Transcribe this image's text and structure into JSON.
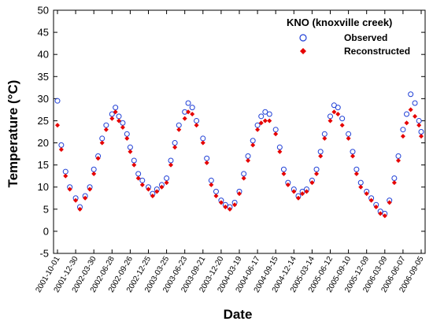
{
  "chart_data": {
    "type": "scatter",
    "title": "",
    "xlabel": "Date",
    "ylabel": "Temperature (°C)",
    "legend_title": "KNO (knoxville creek)",
    "legend_position": "top-right",
    "ylim": [
      -5,
      50
    ],
    "y_ticks": [
      -5,
      0,
      5,
      10,
      15,
      20,
      25,
      30,
      35,
      40,
      45,
      50
    ],
    "y_tick_labels": [
      "-5",
      "0",
      "5",
      "10",
      "15",
      "20",
      "25",
      "30",
      "35",
      "40",
      "45",
      "50"
    ],
    "xlim": [
      "2001-10-01",
      "2006-09-05"
    ],
    "x_tick_labels": [
      "2001-10-01",
      "2001-12-30",
      "2002-03-30",
      "2002-06-28",
      "2002-09-26",
      "2002-12-25",
      "2003-03-25",
      "2003-06-23",
      "2003-09-21",
      "2003-12-20",
      "2004-03-19",
      "2004-06-17",
      "2004-09-15",
      "2004-12-14",
      "2005-03-14",
      "2005-06-12",
      "2005-09-10",
      "2005-12-09",
      "2006-03-09",
      "2006-06-07",
      "2006-09-05"
    ],
    "grid": false,
    "colors": {
      "observed": "#1f3fd6",
      "reconstructed": "#e60000"
    },
    "series": [
      {
        "name": "Observed",
        "marker": "open-circle",
        "x": [
          "2001-10-01",
          "2001-10-20",
          "2001-11-10",
          "2001-12-01",
          "2001-12-30",
          "2002-01-20",
          "2002-02-15",
          "2002-03-10",
          "2002-03-30",
          "2002-04-20",
          "2002-05-10",
          "2002-05-30",
          "2002-06-28",
          "2002-07-15",
          "2002-08-01",
          "2002-08-20",
          "2002-09-10",
          "2002-09-26",
          "2002-10-15",
          "2002-11-05",
          "2002-11-25",
          "2002-12-25",
          "2003-01-15",
          "2003-02-05",
          "2003-03-01",
          "2003-03-25",
          "2003-04-15",
          "2003-05-05",
          "2003-05-25",
          "2003-06-23",
          "2003-07-10",
          "2003-07-30",
          "2003-08-20",
          "2003-09-21",
          "2003-10-10",
          "2003-11-01",
          "2003-11-25",
          "2003-12-20",
          "2004-01-10",
          "2004-02-01",
          "2004-02-25",
          "2004-03-19",
          "2004-04-10",
          "2004-05-01",
          "2004-05-25",
          "2004-06-17",
          "2004-07-05",
          "2004-07-25",
          "2004-08-15",
          "2004-09-15",
          "2004-10-05",
          "2004-10-25",
          "2004-11-15",
          "2004-12-14",
          "2005-01-05",
          "2005-01-25",
          "2005-02-15",
          "2005-03-14",
          "2005-04-05",
          "2005-04-25",
          "2005-05-15",
          "2005-06-12",
          "2005-07-01",
          "2005-07-20",
          "2005-08-10",
          "2005-09-10",
          "2005-10-01",
          "2005-10-20",
          "2005-11-10",
          "2005-12-09",
          "2006-01-01",
          "2006-01-25",
          "2006-02-15",
          "2006-03-09",
          "2006-04-01",
          "2006-04-25",
          "2006-05-15",
          "2006-06-07",
          "2006-06-25",
          "2006-07-15",
          "2006-08-05",
          "2006-08-25",
          "2006-09-05"
        ],
        "y": [
          29.5,
          19.5,
          13.5,
          10,
          7.5,
          5.5,
          8,
          10,
          14,
          17,
          21,
          24,
          26.5,
          28,
          26,
          24.5,
          22,
          19,
          16,
          13,
          11.5,
          10,
          8.5,
          9.5,
          10.5,
          12,
          16,
          20,
          24,
          27,
          29,
          28,
          25,
          21,
          16.5,
          11.5,
          9,
          7,
          6,
          5.5,
          6.5,
          9,
          13,
          17,
          20.5,
          24,
          26,
          27,
          26.5,
          23,
          19,
          14,
          11,
          9.5,
          8,
          9,
          9.5,
          11.5,
          14,
          18,
          22,
          26,
          28.5,
          28,
          25.5,
          22,
          18,
          14,
          11,
          9,
          7.5,
          6,
          4.5,
          4,
          7,
          12,
          17,
          23,
          26.5,
          31,
          29,
          25,
          22.5
        ]
      },
      {
        "name": "Reconstructed",
        "marker": "filled-diamond",
        "x": [
          "2001-10-01",
          "2001-10-20",
          "2001-11-10",
          "2001-12-01",
          "2001-12-30",
          "2002-01-20",
          "2002-02-15",
          "2002-03-10",
          "2002-03-30",
          "2002-04-20",
          "2002-05-10",
          "2002-05-30",
          "2002-06-28",
          "2002-07-15",
          "2002-08-01",
          "2002-08-20",
          "2002-09-10",
          "2002-09-26",
          "2002-10-15",
          "2002-11-05",
          "2002-11-25",
          "2002-12-25",
          "2003-01-15",
          "2003-02-05",
          "2003-03-01",
          "2003-03-25",
          "2003-04-15",
          "2003-05-05",
          "2003-05-25",
          "2003-06-23",
          "2003-07-10",
          "2003-07-30",
          "2003-08-20",
          "2003-09-21",
          "2003-10-10",
          "2003-11-01",
          "2003-11-25",
          "2003-12-20",
          "2004-01-10",
          "2004-02-01",
          "2004-02-25",
          "2004-03-19",
          "2004-04-10",
          "2004-05-01",
          "2004-05-25",
          "2004-06-17",
          "2004-07-05",
          "2004-07-25",
          "2004-08-15",
          "2004-09-15",
          "2004-10-05",
          "2004-10-25",
          "2004-11-15",
          "2004-12-14",
          "2005-01-05",
          "2005-01-25",
          "2005-02-15",
          "2005-03-14",
          "2005-04-05",
          "2005-04-25",
          "2005-05-15",
          "2005-06-12",
          "2005-07-01",
          "2005-07-20",
          "2005-08-10",
          "2005-09-10",
          "2005-10-01",
          "2005-10-20",
          "2005-11-10",
          "2005-12-09",
          "2006-01-01",
          "2006-01-25",
          "2006-02-15",
          "2006-03-09",
          "2006-04-01",
          "2006-04-25",
          "2006-05-15",
          "2006-06-07",
          "2006-06-25",
          "2006-07-15",
          "2006-08-05",
          "2006-08-25",
          "2006-09-05"
        ],
        "y": [
          24,
          18.5,
          12.5,
          9.5,
          7,
          5,
          7.5,
          9.5,
          13,
          16.5,
          20,
          23,
          25.5,
          27,
          25,
          23.5,
          21,
          18,
          15,
          12,
          10.5,
          9.5,
          8,
          9,
          10,
          11,
          15,
          19,
          23,
          25.5,
          27,
          26.5,
          24,
          20,
          15.5,
          10.5,
          8,
          6.5,
          5.5,
          5,
          6,
          8.5,
          12,
          16,
          19.5,
          23,
          24.5,
          25,
          25,
          22,
          18,
          13,
          10.5,
          9,
          7.5,
          8.5,
          9,
          11,
          13,
          17,
          21,
          25,
          27,
          26.5,
          24,
          21,
          17,
          13,
          10,
          8.5,
          7,
          5.5,
          4,
          3.5,
          6.5,
          11,
          16,
          21.5,
          24.5,
          27.5,
          26,
          24,
          21.5
        ]
      }
    ]
  }
}
